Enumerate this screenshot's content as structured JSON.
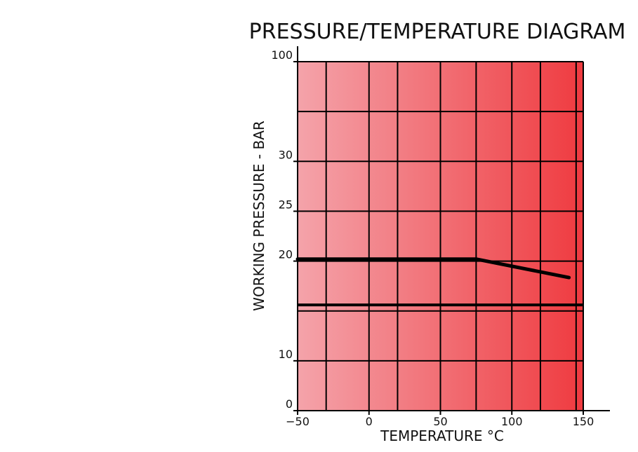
{
  "chart_data": {
    "type": "line",
    "title": "PRESSURE/TEMPERATURE DIAGRAM",
    "xlabel": "TEMPERATURE °C",
    "ylabel": "WORKING PRESSURE - BAR",
    "x_ticks": [
      "−50",
      "0",
      "50",
      "100",
      "150"
    ],
    "x_tick_values": [
      -50,
      0,
      50,
      100,
      150
    ],
    "y_ticks": [
      "0",
      "10",
      "20",
      "25",
      "30",
      "100"
    ],
    "xlim": [
      -50,
      150
    ],
    "x_grid_values": [
      -50,
      -30,
      0,
      20,
      50,
      75,
      100,
      120,
      145,
      150
    ],
    "y_grid": [
      {
        "label": "0",
        "level": 0
      },
      {
        "label": "10",
        "level": 1
      },
      {
        "label": "",
        "level": 2
      },
      {
        "label": "20",
        "level": 3
      },
      {
        "label": "25",
        "level": 4
      },
      {
        "label": "30",
        "level": 5
      },
      {
        "label": "",
        "level": 6
      },
      {
        "label": "100",
        "level": 7
      }
    ],
    "y_levels": 7,
    "grid": true,
    "background_gradient": [
      "#f4a3aa",
      "#ef3b40"
    ],
    "series": [
      {
        "x": [
          -50,
          75,
          140
        ],
        "y_level": [
          3.04,
          3.04,
          2.67
        ],
        "color": "#000000"
      }
    ],
    "reference_lines": [
      {
        "y_level": 2.12,
        "color": "#000000"
      }
    ]
  }
}
